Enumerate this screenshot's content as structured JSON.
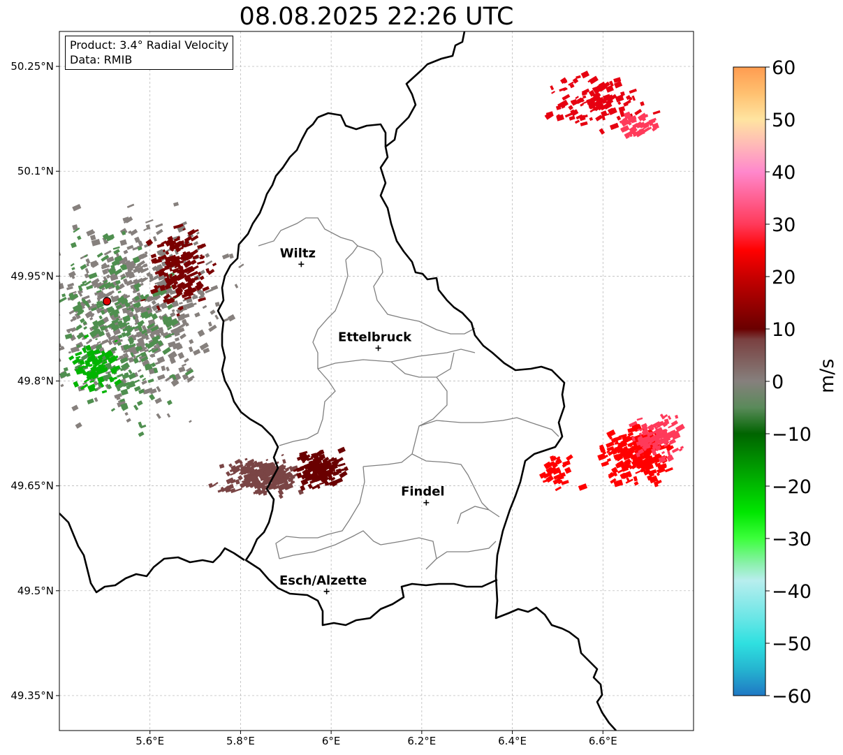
{
  "title": "08.08.2025 22:26 UTC",
  "info": {
    "product": "Product: 3.4° Radial Velocity",
    "data": "Data: RMIB"
  },
  "map": {
    "lon_range": [
      5.4,
      6.8
    ],
    "lat_range": [
      49.3,
      50.3
    ],
    "lon_ticks": [
      5.6,
      5.8,
      6.0,
      6.2,
      6.4,
      6.6
    ],
    "lon_tick_labels": [
      "5.6°E",
      "5.8°E",
      "6°E",
      "6.2°E",
      "6.4°E",
      "6.6°E"
    ],
    "lat_ticks": [
      50.25,
      50.1,
      49.95,
      49.8,
      49.65,
      49.5,
      49.35
    ],
    "lat_tick_labels": [
      "50.25°N",
      "50.1°N",
      "49.95°N",
      "49.8°N",
      "49.65°N",
      "49.5°N",
      "49.35°N"
    ],
    "grid": true,
    "radar_site": {
      "lon": 5.505,
      "lat": 49.914,
      "color": "#e00000"
    },
    "cities": [
      {
        "name": "Wiltz",
        "lon": 5.934,
        "lat": 49.967
      },
      {
        "name": "Ettelbruck",
        "lon": 6.104,
        "lat": 49.847
      },
      {
        "name": "Findel",
        "lon": 6.21,
        "lat": 49.626
      },
      {
        "name": "Esch/Alzette",
        "lon": 5.99,
        "lat": 49.499
      }
    ]
  },
  "colorbar": {
    "label": "m/s",
    "min": -60,
    "max": 60,
    "ticks": [
      60,
      50,
      40,
      30,
      20,
      10,
      0,
      -10,
      -20,
      -30,
      -40,
      -50,
      -60
    ],
    "tick_labels": [
      "60",
      "50",
      "40",
      "30",
      "20",
      "10",
      "0",
      "−10",
      "−20",
      "−30",
      "−40",
      "−50",
      "−60"
    ],
    "stops": [
      {
        "v": -60,
        "c": "#1f78c4"
      },
      {
        "v": -55,
        "c": "#25b4d0"
      },
      {
        "v": -50,
        "c": "#2fe0e0"
      },
      {
        "v": -45,
        "c": "#6ce6e6"
      },
      {
        "v": -38,
        "c": "#b8eeee"
      },
      {
        "v": -35,
        "c": "#8ef0b0"
      },
      {
        "v": -30,
        "c": "#3cff3c"
      },
      {
        "v": -25,
        "c": "#00e600"
      },
      {
        "v": -10,
        "c": "#006400"
      },
      {
        "v": -5,
        "c": "#5a8a5a"
      },
      {
        "v": 0,
        "c": "#86807d"
      },
      {
        "v": 8,
        "c": "#7a4040"
      },
      {
        "v": 10,
        "c": "#6a0000"
      },
      {
        "v": 20,
        "c": "#c80000"
      },
      {
        "v": 25,
        "c": "#ff0000"
      },
      {
        "v": 30,
        "c": "#ff3a5a"
      },
      {
        "v": 40,
        "c": "#ff88cc"
      },
      {
        "v": 45,
        "c": "#ffb8b8"
      },
      {
        "v": 50,
        "c": "#ffe4a0"
      },
      {
        "v": 55,
        "c": "#ffc070"
      },
      {
        "v": 60,
        "c": "#ff9c50"
      }
    ]
  },
  "radar_echoes": [
    {
      "name": "west-radar-clutter",
      "lon": 5.56,
      "lat": 49.9,
      "lon_span": 0.26,
      "lat_span": 0.19,
      "color": "#86807d",
      "count": 520
    },
    {
      "name": "west-clutter-green",
      "lon": 5.52,
      "lat": 49.88,
      "lon_span": 0.2,
      "lat_span": 0.17,
      "color": "#4f8f4f",
      "count": 260
    },
    {
      "name": "west-clutter-darkred",
      "lon": 5.66,
      "lat": 49.96,
      "lon_span": 0.09,
      "lat_span": 0.08,
      "color": "#7a0000",
      "count": 170
    },
    {
      "name": "west-clutter-brightgreen",
      "lon": 5.47,
      "lat": 49.82,
      "lon_span": 0.07,
      "lat_span": 0.05,
      "color": "#00b400",
      "count": 80
    },
    {
      "name": "southwest-band-brown",
      "lon": 5.84,
      "lat": 49.665,
      "lon_span": 0.12,
      "lat_span": 0.035,
      "color": "#7a4545",
      "count": 210
    },
    {
      "name": "southwest-band-darkred",
      "lon": 5.97,
      "lat": 49.675,
      "lon_span": 0.07,
      "lat_span": 0.035,
      "color": "#6a0000",
      "count": 130
    },
    {
      "name": "northeast-cells",
      "lon": 6.58,
      "lat": 50.2,
      "lon_span": 0.16,
      "lat_span": 0.05,
      "color": "#e60010",
      "count": 110
    },
    {
      "name": "northeast-cells-pink",
      "lon": 6.66,
      "lat": 50.17,
      "lon_span": 0.07,
      "lat_span": 0.025,
      "color": "#ff3a5a",
      "count": 40
    },
    {
      "name": "east-storm-red",
      "lon": 6.67,
      "lat": 49.695,
      "lon_span": 0.1,
      "lat_span": 0.055,
      "color": "#ff0000",
      "count": 240
    },
    {
      "name": "east-storm-pink",
      "lon": 6.72,
      "lat": 49.72,
      "lon_span": 0.08,
      "lat_span": 0.04,
      "color": "#ff3a5a",
      "count": 110
    },
    {
      "name": "east-storm-tail",
      "lon": 6.49,
      "lat": 49.67,
      "lon_span": 0.06,
      "lat_span": 0.035,
      "color": "#ff0000",
      "count": 30
    }
  ]
}
